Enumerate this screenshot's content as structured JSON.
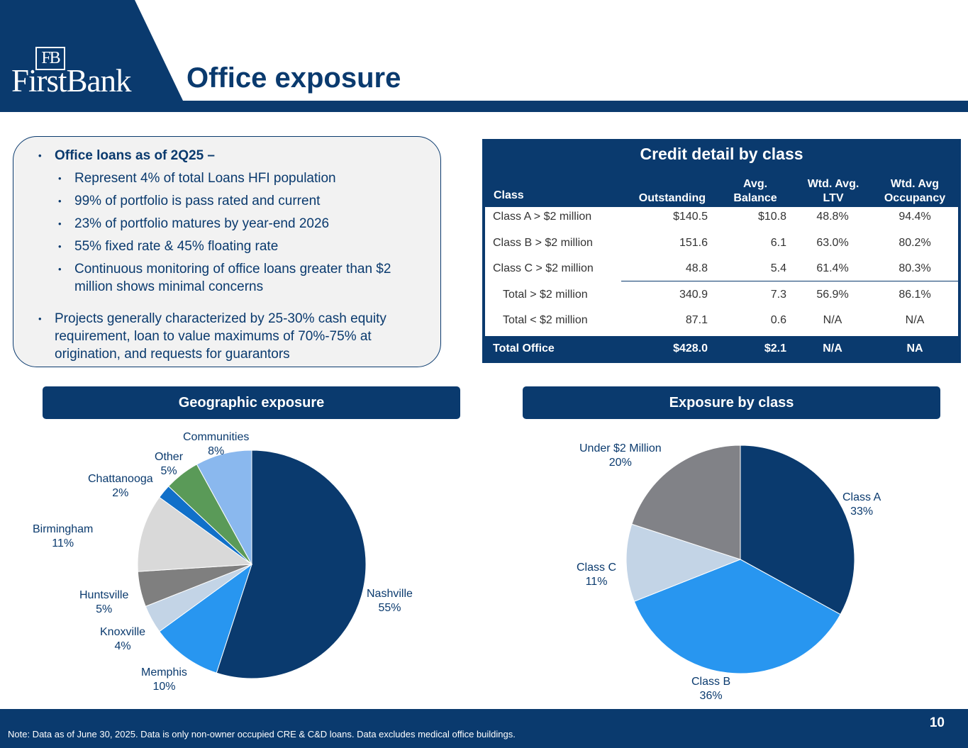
{
  "header": {
    "logo_monogram": "FB",
    "logo_text": "FirstBank",
    "title": "Office exposure"
  },
  "bullets": {
    "main1": "Office loans as of 2Q25 –",
    "sub": [
      "Represent 4% of total Loans HFI population",
      "99% of portfolio is pass rated and current",
      "23% of portfolio matures by year-end 2026",
      "55% fixed rate & 45% floating rate",
      "Continuous monitoring of office loans greater than $2",
      "million shows minimal concerns"
    ],
    "main2": [
      "Projects generally characterized by 25-30% cash equity",
      "requirement, loan to value maximums of 70%-75% at",
      "origination, and requests for guarantors"
    ]
  },
  "credit_table": {
    "title": "Credit detail by class",
    "headers": {
      "class": "Class",
      "outstanding": "Outstanding",
      "avg_balance_1": "Avg.",
      "avg_balance_2": "Balance",
      "ltv_1": "Wtd. Avg.",
      "ltv_2": "LTV",
      "occ_1": "Wtd. Avg",
      "occ_2": "Occupancy"
    },
    "rows": [
      [
        "Class A > $2 million",
        "$140.5",
        "$10.8",
        "48.8%",
        "94.4%"
      ],
      [
        "Class B > $2 million",
        "151.6",
        "6.1",
        "63.0%",
        "80.2%"
      ],
      [
        "Class C > $2 million",
        "48.8",
        "5.4",
        "61.4%",
        "80.3%"
      ],
      [
        "Total > $2 million",
        "340.9",
        "7.3",
        "56.9%",
        "86.1%"
      ],
      [
        "Total < $2 million",
        "87.1",
        "0.6",
        "N/A",
        "N/A"
      ]
    ],
    "total": [
      "Total Office",
      "$428.0",
      "$2.1",
      "N/A",
      "NA"
    ]
  },
  "sections": {
    "geo": "Geographic exposure",
    "class": "Exposure by class"
  },
  "chart_data": [
    {
      "type": "pie",
      "title": "Geographic exposure",
      "categories": [
        "Nashville",
        "Memphis",
        "Knoxville",
        "Huntsville",
        "Birmingham",
        "Chattanooga",
        "Other",
        "Communities"
      ],
      "values": [
        55,
        10,
        4,
        5,
        11,
        2,
        5,
        8
      ],
      "labels": [
        "55%",
        "10%",
        "4%",
        "5%",
        "11%",
        "2%",
        "5%",
        "8%"
      ],
      "colors": [
        "#0a3a6e",
        "#2896f0",
        "#c3d4e6",
        "#7f7f7f",
        "#d9d9d9",
        "#1170c9",
        "#5a9a58",
        "#8ab8ee"
      ]
    },
    {
      "type": "pie",
      "title": "Exposure by class",
      "categories": [
        "Class A",
        "Class B",
        "Class C",
        "Under $2 Million"
      ],
      "values": [
        33,
        36,
        11,
        20
      ],
      "labels": [
        "33%",
        "36%",
        "11%",
        "20%"
      ],
      "colors": [
        "#0a3a6e",
        "#2896f0",
        "#c3d4e6",
        "#818287"
      ]
    }
  ],
  "footer": {
    "note": "Note: Data as of June 30, 2025. Data is only non-owner occupied CRE & C&D loans.  Data excludes medical office buildings.",
    "page": "10"
  }
}
